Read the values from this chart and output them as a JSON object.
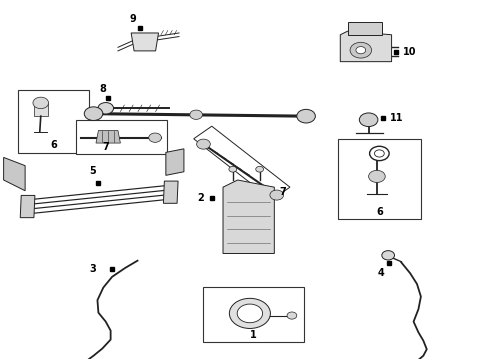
{
  "bg_color": "#ffffff",
  "fig_width": 4.9,
  "fig_height": 3.6,
  "dpi": 100,
  "line_color": "#222222",
  "label_color": "#000000",
  "label_fontsize": 7,
  "label_fontweight": "bold"
}
